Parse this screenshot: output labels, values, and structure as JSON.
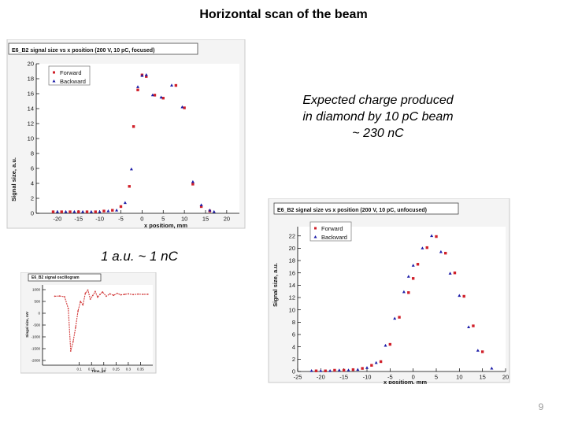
{
  "slide": {
    "title": "Horizontal scan of the beam",
    "annotation_lines": [
      "Expected charge  produced",
      "in diamond by 10 pC beam",
      "~ 230 nC"
    ],
    "calibration_note": "1 a.u. ~ 1 nC",
    "page_number": "9"
  },
  "colors": {
    "forward": "#d0202a",
    "backward": "#1c1ca8",
    "oscillogram": "#d23a3a"
  },
  "chart_data": [
    {
      "type": "scatter",
      "title": "E6_B2 signal size vs x position (200 V, 10 pC, focused)",
      "xlabel": "x positiom, mm",
      "ylabel": "Signal size, a.u.",
      "xlim": [
        -25,
        23
      ],
      "ylim": [
        0,
        20
      ],
      "xticks": [
        -20,
        -15,
        -10,
        -5,
        0,
        5,
        10,
        15,
        20
      ],
      "yticks": [
        0,
        2,
        4,
        6,
        8,
        10,
        12,
        14,
        16,
        18,
        20
      ],
      "legend": {
        "position": "top-left"
      },
      "series": [
        {
          "name": "Forward",
          "color": "#d0202a",
          "x": [
            -21,
            -19,
            -17,
            -15,
            -13,
            -11,
            -9,
            -7,
            -5,
            -3,
            -2,
            -1,
            0,
            1,
            3,
            5,
            8,
            10,
            12,
            14,
            16
          ],
          "y": [
            0.2,
            0.2,
            0.2,
            0.2,
            0.2,
            0.2,
            0.3,
            0.4,
            0.9,
            3.6,
            11.6,
            16.5,
            18.5,
            18.3,
            15.8,
            15.4,
            17.1,
            14.1,
            3.9,
            0.9,
            0.3
          ]
        },
        {
          "name": "Backward",
          "color": "#1c1ca8",
          "x": [
            -20,
            -18,
            -16,
            -14,
            -12,
            -10,
            -8,
            -6,
            -4,
            -2.5,
            -1,
            0,
            1,
            2.5,
            4.5,
            7,
            9.5,
            12,
            14,
            16,
            17
          ],
          "y": [
            0.2,
            0.2,
            0.2,
            0.2,
            0.2,
            0.2,
            0.3,
            0.4,
            1.4,
            5.9,
            16.9,
            18.4,
            18.5,
            15.8,
            15.5,
            17.1,
            14.2,
            4.2,
            1.1,
            0.4,
            0.2
          ]
        }
      ]
    },
    {
      "type": "scatter",
      "title": "E6_B2 signal size vs x position (200 V, 10 pC, unfocused)",
      "xlabel": "x positiom, mm",
      "ylabel": "Signal size, a.u.",
      "xlim": [
        -25,
        20
      ],
      "ylim": [
        0,
        23.5
      ],
      "xticks": [
        -25,
        -20,
        -15,
        -10,
        -5,
        0,
        5,
        10,
        15,
        20
      ],
      "yticks": [
        0,
        2,
        4,
        6,
        8,
        10,
        12,
        14,
        16,
        18,
        20,
        22
      ],
      "legend": {
        "position": "top-left"
      },
      "series": [
        {
          "name": "Forward",
          "color": "#d0202a",
          "x": [
            -21,
            -19,
            -17,
            -15,
            -13,
            -11,
            -9,
            -7,
            -5,
            -3,
            -1,
            0,
            1,
            3,
            5,
            7,
            9,
            11,
            13,
            15
          ],
          "y": [
            0.1,
            0.1,
            0.2,
            0.2,
            0.3,
            0.5,
            1.0,
            1.6,
            4.4,
            8.8,
            12.8,
            15.1,
            17.4,
            20.1,
            21.9,
            19.2,
            16.0,
            12.2,
            7.4,
            3.2
          ]
        },
        {
          "name": "Backward",
          "color": "#1c1ca8",
          "x": [
            -22,
            -20,
            -18,
            -16,
            -14,
            -12,
            -10,
            -8,
            -6,
            -4,
            -2,
            -1,
            0,
            2,
            4,
            6,
            8,
            10,
            12,
            14,
            17
          ],
          "y": [
            0.1,
            0.1,
            0.1,
            0.2,
            0.2,
            0.3,
            0.6,
            1.4,
            4.2,
            8.6,
            12.9,
            15.4,
            17.2,
            20.0,
            22.0,
            19.4,
            15.9,
            12.3,
            7.2,
            3.4,
            0.5
          ]
        }
      ]
    },
    {
      "type": "line",
      "title": "E6_B2 signal oscillogram",
      "ylabel": "Singal size, mV",
      "xlabel": "Time, µs",
      "xlim": [
        -0.05,
        0.4
      ],
      "ylim": [
        -2200,
        1200
      ],
      "xticks": [
        0.1,
        0.15,
        0.2,
        0.25,
        0.3,
        0.35
      ],
      "xtick_labels": [
        "0.1",
        "0.15",
        "0.2",
        "0.25",
        "0.3",
        "0.35"
      ],
      "yticks": [
        -2000,
        -1500,
        -1000,
        -500,
        0,
        500,
        1000
      ],
      "series": [
        {
          "name": "",
          "color": "#d23a3a",
          "x": [
            0.0,
            0.02,
            0.04,
            0.055,
            0.065,
            0.075,
            0.085,
            0.095,
            0.105,
            0.115,
            0.125,
            0.135,
            0.145,
            0.155,
            0.165,
            0.175,
            0.185,
            0.195,
            0.21,
            0.225,
            0.24,
            0.255,
            0.27,
            0.285,
            0.3,
            0.32,
            0.34,
            0.36,
            0.38
          ],
          "y": [
            720,
            730,
            700,
            200,
            -1600,
            -1200,
            -600,
            100,
            500,
            350,
            850,
            980,
            600,
            750,
            920,
            680,
            800,
            900,
            720,
            820,
            760,
            840,
            780,
            800,
            820,
            790,
            810,
            800,
            805
          ]
        }
      ]
    }
  ]
}
